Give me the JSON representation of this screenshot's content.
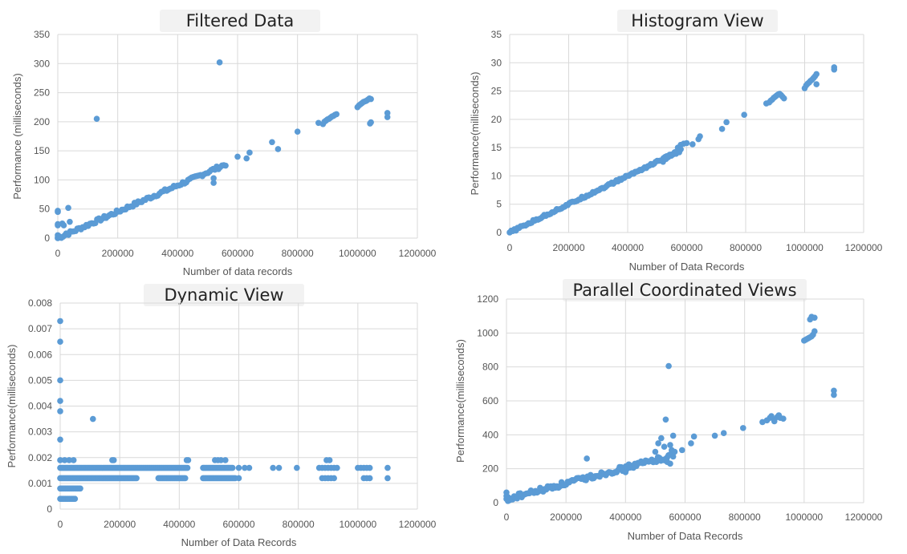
{
  "chart_data": [
    {
      "type": "scatter",
      "title": "Filtered Data",
      "xlabel": "Number of data records",
      "ylabel": "Performance (milliseconds)",
      "xlim": [
        0,
        1200000
      ],
      "ylim": [
        0,
        350
      ],
      "xticks": [
        0,
        200000,
        400000,
        600000,
        800000,
        1000000,
        1200000
      ],
      "yticks": [
        0,
        50,
        100,
        150,
        200,
        250,
        300,
        350
      ],
      "grid": true,
      "color": "#5b9bd5",
      "trend": {
        "x_start": 0,
        "y_start": 0,
        "x_end": 560000,
        "y_end": 127,
        "n": 95,
        "jitter": 3
      },
      "points": [
        [
          0,
          47
        ],
        [
          0,
          45
        ],
        [
          0,
          24
        ],
        [
          0,
          22
        ],
        [
          0,
          5
        ],
        [
          0,
          2
        ],
        [
          0,
          0
        ],
        [
          5000,
          3
        ],
        [
          15000,
          25
        ],
        [
          20000,
          22
        ],
        [
          28000,
          8
        ],
        [
          35000,
          52
        ],
        [
          40000,
          28
        ],
        [
          130000,
          205
        ],
        [
          540000,
          302
        ],
        [
          520000,
          103
        ],
        [
          520000,
          95
        ],
        [
          600000,
          140
        ],
        [
          630000,
          137
        ],
        [
          640000,
          147
        ],
        [
          715000,
          165
        ],
        [
          735000,
          153
        ],
        [
          800000,
          183
        ],
        [
          870000,
          198
        ],
        [
          885000,
          196
        ],
        [
          890000,
          200
        ],
        [
          895000,
          202
        ],
        [
          900000,
          204
        ],
        [
          905000,
          205
        ],
        [
          910000,
          207
        ],
        [
          915000,
          209
        ],
        [
          920000,
          210
        ],
        [
          925000,
          212
        ],
        [
          930000,
          213
        ],
        [
          1000000,
          225
        ],
        [
          1005000,
          228
        ],
        [
          1010000,
          230
        ],
        [
          1015000,
          232
        ],
        [
          1020000,
          234
        ],
        [
          1025000,
          235
        ],
        [
          1030000,
          236
        ],
        [
          1035000,
          238
        ],
        [
          1040000,
          240
        ],
        [
          1045000,
          239
        ],
        [
          1042000,
          197
        ],
        [
          1045000,
          199
        ],
        [
          1100000,
          208
        ],
        [
          1100000,
          215
        ]
      ]
    },
    {
      "type": "scatter",
      "title": "Histogram View",
      "xlabel": "Number of Data Records",
      "ylabel": "Performance(milliseconds)",
      "xlim": [
        0,
        1200000
      ],
      "ylim": [
        0,
        35
      ],
      "xticks": [
        0,
        200000,
        400000,
        600000,
        800000,
        1000000,
        1200000
      ],
      "yticks": [
        0,
        5,
        10,
        15,
        20,
        25,
        30,
        35
      ],
      "grid": true,
      "color": "#5b9bd5",
      "trend": {
        "x_start": 0,
        "y_start": 0,
        "x_end": 580000,
        "y_end": 14.5,
        "n": 110,
        "jitter": 0.2
      },
      "points": [
        [
          520000,
          12.5
        ],
        [
          530000,
          13.0
        ],
        [
          540000,
          13.5
        ],
        [
          550000,
          13.8
        ],
        [
          560000,
          14.2
        ],
        [
          570000,
          15.0
        ],
        [
          580000,
          15.5
        ],
        [
          590000,
          15.7
        ],
        [
          600000,
          15.8
        ],
        [
          620000,
          15.6
        ],
        [
          640000,
          16.5
        ],
        [
          645000,
          17.0
        ],
        [
          720000,
          18.3
        ],
        [
          735000,
          19.5
        ],
        [
          795000,
          20.8
        ],
        [
          870000,
          22.8
        ],
        [
          880000,
          23.0
        ],
        [
          885000,
          23.3
        ],
        [
          890000,
          23.5
        ],
        [
          895000,
          23.8
        ],
        [
          900000,
          24.0
        ],
        [
          905000,
          24.2
        ],
        [
          910000,
          24.4
        ],
        [
          915000,
          24.5
        ],
        [
          920000,
          24.3
        ],
        [
          925000,
          24.0
        ],
        [
          930000,
          23.7
        ],
        [
          1000000,
          25.5
        ],
        [
          1005000,
          26.0
        ],
        [
          1010000,
          26.3
        ],
        [
          1015000,
          26.5
        ],
        [
          1020000,
          26.8
        ],
        [
          1025000,
          27.0
        ],
        [
          1030000,
          27.3
        ],
        [
          1035000,
          27.6
        ],
        [
          1040000,
          28.0
        ],
        [
          1040000,
          26.2
        ],
        [
          1100000,
          28.8
        ],
        [
          1100000,
          29.2
        ]
      ]
    },
    {
      "type": "scatter",
      "title": "Dynamic View",
      "xlabel": "Number of Data Records",
      "ylabel": "Performance(milliseconds)",
      "xlim": [
        0,
        1200000
      ],
      "ylim": [
        0,
        0.008
      ],
      "xticks": [
        0,
        200000,
        400000,
        600000,
        800000,
        1000000,
        1200000
      ],
      "yticks": [
        0,
        0.001,
        0.002,
        0.003,
        0.004,
        0.005,
        0.006,
        0.007,
        0.008
      ],
      "grid": true,
      "color": "#5b9bd5",
      "bands": [
        {
          "y": 0.0004,
          "x_from": 0,
          "x_to": 50000
        },
        {
          "y": 0.0008,
          "x_from": 0,
          "x_to": 70000
        },
        {
          "y": 0.0012,
          "x_from": 0,
          "x_to": 260000
        },
        {
          "y": 0.0016,
          "x_from": 0,
          "x_to": 430000
        },
        {
          "y": 0.0016,
          "x_from": 480000,
          "x_to": 580000
        },
        {
          "y": 0.0012,
          "x_from": 330000,
          "x_to": 420000
        },
        {
          "y": 0.0012,
          "x_from": 480000,
          "x_to": 590000
        }
      ],
      "points": [
        [
          0,
          0.0073
        ],
        [
          0,
          0.0065
        ],
        [
          0,
          0.005
        ],
        [
          0,
          0.0042
        ],
        [
          0,
          0.0038
        ],
        [
          0,
          0.0027
        ],
        [
          0,
          0.0019
        ],
        [
          15000,
          0.0019
        ],
        [
          30000,
          0.0019
        ],
        [
          45000,
          0.0019
        ],
        [
          110000,
          0.0035
        ],
        [
          175000,
          0.0019
        ],
        [
          180000,
          0.0019
        ],
        [
          425000,
          0.0019
        ],
        [
          430000,
          0.0019
        ],
        [
          520000,
          0.0019
        ],
        [
          530000,
          0.0019
        ],
        [
          540000,
          0.0019
        ],
        [
          555000,
          0.0019
        ],
        [
          600000,
          0.0016
        ],
        [
          620000,
          0.0016
        ],
        [
          635000,
          0.0016
        ],
        [
          600000,
          0.0012
        ],
        [
          715000,
          0.0016
        ],
        [
          735000,
          0.0016
        ],
        [
          795000,
          0.0016
        ],
        [
          870000,
          0.0016
        ],
        [
          880000,
          0.0016
        ],
        [
          890000,
          0.0016
        ],
        [
          900000,
          0.0016
        ],
        [
          910000,
          0.0016
        ],
        [
          920000,
          0.0016
        ],
        [
          930000,
          0.0016
        ],
        [
          895000,
          0.0019
        ],
        [
          905000,
          0.0019
        ],
        [
          880000,
          0.0012
        ],
        [
          890000,
          0.0012
        ],
        [
          900000,
          0.0012
        ],
        [
          910000,
          0.0012
        ],
        [
          920000,
          0.0012
        ],
        [
          1000000,
          0.0016
        ],
        [
          1010000,
          0.0016
        ],
        [
          1020000,
          0.0016
        ],
        [
          1030000,
          0.0016
        ],
        [
          1040000,
          0.0016
        ],
        [
          1020000,
          0.0012
        ],
        [
          1030000,
          0.0012
        ],
        [
          1040000,
          0.0012
        ],
        [
          1100000,
          0.0016
        ],
        [
          1100000,
          0.0012
        ]
      ]
    },
    {
      "type": "scatter",
      "title": "Parallel Coordinated Views",
      "xlabel": "Number of Data Records",
      "ylabel": "Performance(milliseconds)",
      "xlim": [
        0,
        1200000
      ],
      "ylim": [
        0,
        1200
      ],
      "xticks": [
        0,
        200000,
        400000,
        600000,
        800000,
        1000000,
        1200000
      ],
      "yticks": [
        0,
        200,
        400,
        600,
        800,
        1000,
        1200
      ],
      "grid": true,
      "color": "#5b9bd5",
      "trend": {
        "x_start": 0,
        "y_start": 20,
        "x_end": 560000,
        "y_end": 280,
        "n": 110,
        "jitter": 15
      },
      "points": [
        [
          0,
          60
        ],
        [
          0,
          40
        ],
        [
          5000,
          10
        ],
        [
          270000,
          260
        ],
        [
          360000,
          175
        ],
        [
          400000,
          180
        ],
        [
          430000,
          225
        ],
        [
          500000,
          300
        ],
        [
          510000,
          350
        ],
        [
          520000,
          380
        ],
        [
          530000,
          330
        ],
        [
          535000,
          490
        ],
        [
          545000,
          805
        ],
        [
          550000,
          340
        ],
        [
          555000,
          310
        ],
        [
          560000,
          395
        ],
        [
          565000,
          300
        ],
        [
          540000,
          240
        ],
        [
          550000,
          230
        ],
        [
          530000,
          250
        ],
        [
          590000,
          310
        ],
        [
          620000,
          350
        ],
        [
          630000,
          390
        ],
        [
          700000,
          395
        ],
        [
          730000,
          410
        ],
        [
          795000,
          440
        ],
        [
          860000,
          475
        ],
        [
          875000,
          485
        ],
        [
          885000,
          500
        ],
        [
          890000,
          510
        ],
        [
          900000,
          490
        ],
        [
          910000,
          505
        ],
        [
          920000,
          500
        ],
        [
          930000,
          495
        ],
        [
          900000,
          480
        ],
        [
          915000,
          515
        ],
        [
          1000000,
          955
        ],
        [
          1005000,
          960
        ],
        [
          1010000,
          965
        ],
        [
          1015000,
          970
        ],
        [
          1020000,
          975
        ],
        [
          1025000,
          980
        ],
        [
          1030000,
          990
        ],
        [
          1035000,
          1010
        ],
        [
          1020000,
          1080
        ],
        [
          1025000,
          1095
        ],
        [
          1035000,
          1090
        ],
        [
          1100000,
          635
        ],
        [
          1100000,
          660
        ]
      ]
    }
  ]
}
